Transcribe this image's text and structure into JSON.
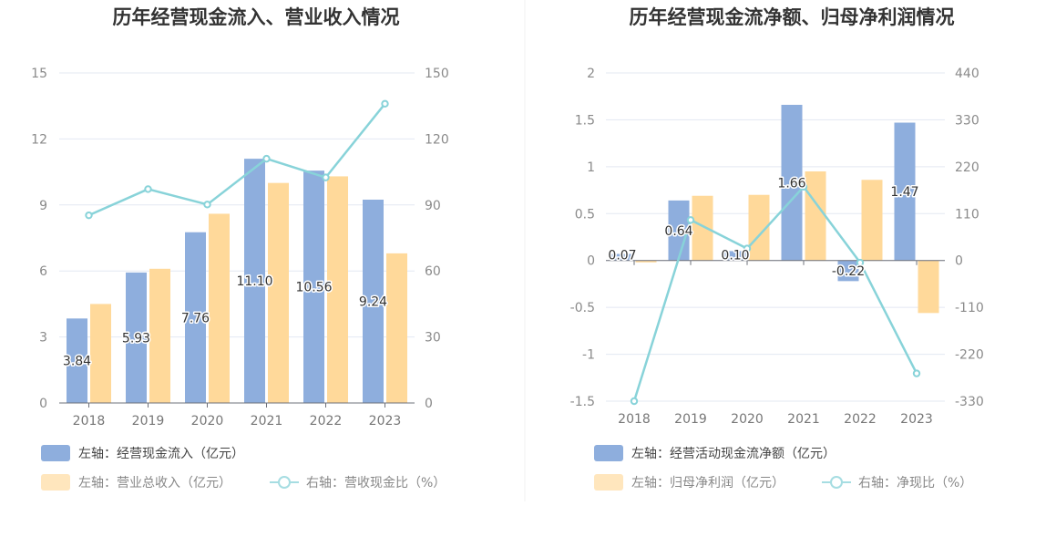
{
  "colors": {
    "bar_blue": "#8eaedd",
    "bar_orange": "#ffd99a",
    "line": "#88d3d9",
    "grid": "#e3e8f2",
    "divider": "#f0f0f0"
  },
  "chart_data": [
    {
      "type": "bar",
      "title": "历年经营现金流入、营业收入情况",
      "categories": [
        "2018",
        "2019",
        "2020",
        "2021",
        "2022",
        "2023"
      ],
      "left_axis": {
        "min": 0,
        "max": 15,
        "ticks": [
          "15",
          "12",
          "9",
          "6",
          "3",
          "0"
        ]
      },
      "right_axis": {
        "min": 0,
        "max": 150,
        "ticks": [
          "150",
          "120",
          "90",
          "60",
          "30",
          "0"
        ]
      },
      "series": [
        {
          "name": "左轴：经营现金流入（亿元）",
          "kind": "bar",
          "axis": "left",
          "values": [
            3.84,
            5.93,
            7.76,
            11.1,
            10.56,
            9.24
          ],
          "labels": [
            "3.84",
            "5.93",
            "7.76",
            "11.10",
            "10.56",
            "9.24"
          ]
        },
        {
          "name": "左轴：营业总收入（亿元）",
          "kind": "bar",
          "axis": "left",
          "values": [
            4.5,
            6.1,
            8.6,
            10.0,
            10.3,
            6.8
          ]
        },
        {
          "name": "右轴：营收现金比（%）",
          "kind": "line",
          "axis": "right",
          "values": [
            85.3,
            97.2,
            90.2,
            111.0,
            102.5,
            136.0
          ]
        }
      ]
    },
    {
      "type": "bar",
      "title": "历年经营现金流净额、归母净利润情况",
      "categories": [
        "2018",
        "2019",
        "2020",
        "2021",
        "2022",
        "2023"
      ],
      "left_axis": {
        "min": -1.5,
        "max": 2,
        "ticks": [
          "2",
          "1.5",
          "1",
          "0.5",
          "0",
          "-0.5",
          "-1",
          "-1.5"
        ]
      },
      "right_axis": {
        "min": -330,
        "max": 440,
        "ticks": [
          "440",
          "330",
          "220",
          "110",
          "0",
          "-110",
          "-220",
          "-330"
        ]
      },
      "series": [
        {
          "name": "左轴：经营活动现金流净额（亿元）",
          "kind": "bar",
          "axis": "left",
          "values": [
            0.07,
            0.64,
            0.1,
            1.66,
            -0.22,
            1.47
          ],
          "labels": [
            "0.07",
            "0.64",
            "0.10",
            "1.66",
            "-0.22",
            "1.47"
          ]
        },
        {
          "name": "左轴：归母净利润（亿元）",
          "kind": "bar",
          "axis": "left",
          "values": [
            -0.02,
            0.69,
            0.7,
            0.95,
            0.86,
            -0.56
          ]
        },
        {
          "name": "右轴：净现比（%）",
          "kind": "line",
          "axis": "right",
          "values": [
            -330,
            95,
            28,
            173,
            -5,
            -265
          ]
        }
      ]
    }
  ]
}
